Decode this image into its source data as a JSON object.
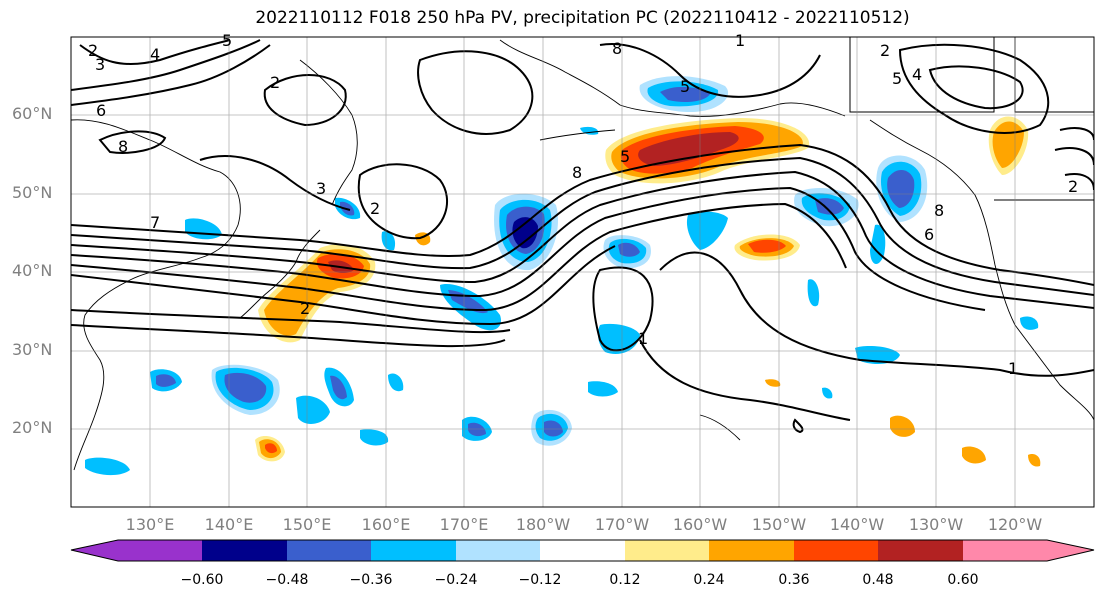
{
  "title": "2022110112 F018 250 hPa PV, precipitation PC (2022110412 - 2022110512)",
  "lat_labels": [
    "60°N",
    "50°N",
    "40°N",
    "30°N",
    "20°N"
  ],
  "lon_labels": [
    "130°E",
    "140°E",
    "150°E",
    "160°E",
    "170°E",
    "180°W",
    "170°W",
    "160°W",
    "150°W",
    "140°W",
    "130°W",
    "120°W"
  ],
  "colorbar": {
    "ticks": [
      "−0.60",
      "−0.48",
      "−0.36",
      "−0.24",
      "−0.12",
      "0.12",
      "0.24",
      "0.36",
      "0.48",
      "0.60"
    ],
    "colors": [
      "#9932CC",
      "#00008B",
      "#3A5FCD",
      "#00BFFF",
      "#B0E2FF",
      "#FFFFFF",
      "#FFEC8B",
      "#FFA500",
      "#FF4500",
      "#B22222",
      "#FF88AA"
    ]
  },
  "contour_labels": [
    "2",
    "3",
    "4",
    "5",
    "6",
    "8",
    "7",
    "2",
    "2",
    "3",
    "2",
    "5",
    "8",
    "5",
    "8",
    "1",
    "1",
    "1",
    "2",
    "5",
    "4",
    "8",
    "6",
    "2"
  ]
}
